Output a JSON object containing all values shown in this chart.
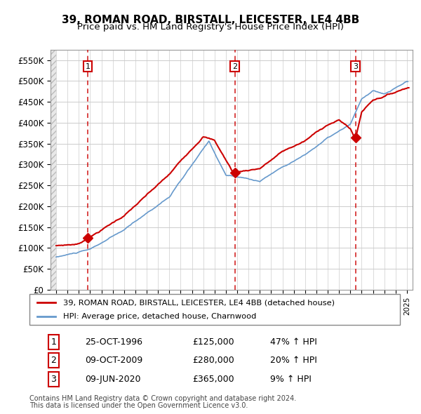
{
  "title": "39, ROMAN ROAD, BIRSTALL, LEICESTER, LE4 4BB",
  "subtitle": "Price paid vs. HM Land Registry's House Price Index (HPI)",
  "legend_label_red": "39, ROMAN ROAD, BIRSTALL, LEICESTER, LE4 4BB (detached house)",
  "legend_label_blue": "HPI: Average price, detached house, Charnwood",
  "transactions": [
    {
      "num": 1,
      "date": "25-OCT-1996",
      "price": 125000,
      "pct": "47%",
      "dir": "↑"
    },
    {
      "num": 2,
      "date": "09-OCT-2009",
      "price": 280000,
      "pct": "20%",
      "dir": "↑"
    },
    {
      "num": 3,
      "date": "09-JUN-2020",
      "price": 365000,
      "pct": "9%",
      "dir": "↑"
    }
  ],
  "footnote1": "Contains HM Land Registry data © Crown copyright and database right 2024.",
  "footnote2": "This data is licensed under the Open Government Licence v3.0.",
  "ylim": [
    0,
    575000
  ],
  "yticks": [
    0,
    50000,
    100000,
    150000,
    200000,
    250000,
    300000,
    350000,
    400000,
    450000,
    500000,
    550000
  ],
  "ytick_labels": [
    "£0",
    "£50K",
    "£100K",
    "£150K",
    "£200K",
    "£250K",
    "£300K",
    "£350K",
    "£400K",
    "£450K",
    "£500K",
    "£550K"
  ],
  "xlim_start": 1993.5,
  "xlim_end": 2025.5,
  "red_color": "#cc0000",
  "blue_color": "#6699cc",
  "bg_hatch_color": "#dddddd",
  "grid_color": "#cccccc",
  "sale_marker_color": "#cc0000",
  "vline_color": "#cc0000"
}
